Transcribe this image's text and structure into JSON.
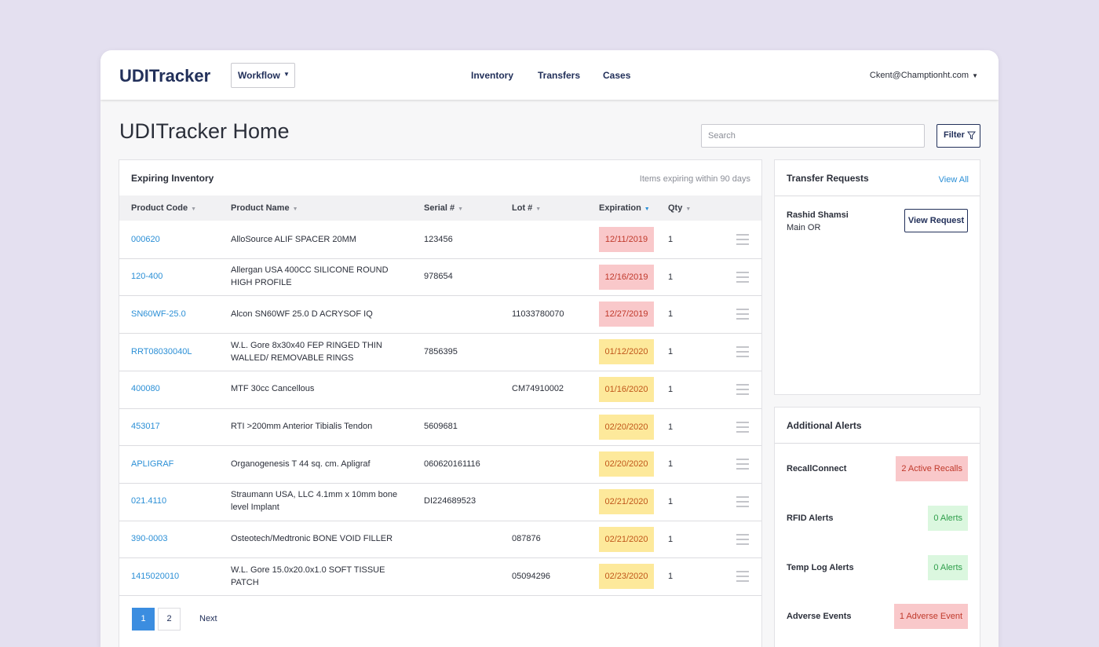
{
  "nav": {
    "brand": "UDITracker",
    "workflow": "Workflow",
    "links": [
      "Inventory",
      "Transfers",
      "Cases"
    ],
    "user": "Ckent@Champtionht.com"
  },
  "page": {
    "title": "UDITracker Home",
    "search_placeholder": "Search",
    "filter": "Filter"
  },
  "styles": {
    "red": {
      "bg": "#f9c8ca",
      "fg": "#c0392b"
    },
    "yellow": {
      "bg": "#fde99b",
      "fg": "#c0561a"
    },
    "green": {
      "bg": "#dbf7df",
      "fg": "#2e9e4a"
    }
  },
  "inventory": {
    "title": "Expiring Inventory",
    "note": "Items expiring within 90 days",
    "columns": [
      "Product Code",
      "Product Name",
      "Serial #",
      "Lot #",
      "Expiration",
      "Qty"
    ],
    "sorted_column": 4,
    "rows": [
      {
        "code": "000620",
        "name": "AlloSource ALIF SPACER 20MM",
        "serial": "123456",
        "lot": null,
        "expiration": "12/11/2019",
        "qty": "1",
        "level": "red"
      },
      {
        "code": "120-400",
        "name": "Allergan USA 400CC SILICONE ROUND HIGH PROFILE",
        "serial": "978654",
        "lot": null,
        "expiration": "12/16/2019",
        "qty": "1",
        "level": "red"
      },
      {
        "code": "SN60WF-25.0",
        "name": "Alcon SN60WF 25.0 D ACRYSOF IQ",
        "serial": null,
        "lot": "11033780070",
        "expiration": "12/27/2019",
        "qty": "1",
        "level": "red"
      },
      {
        "code": "RRT08030040L",
        "name": "W.L. Gore 8x30x40 FEP RINGED THIN WALLED/ REMOVABLE RINGS",
        "serial": "7856395",
        "lot": null,
        "expiration": "01/12/2020",
        "qty": "1",
        "level": "yellow"
      },
      {
        "code": "400080",
        "name": "MTF 30cc Cancellous",
        "serial": null,
        "lot": "CM74910002",
        "expiration": "01/16/2020",
        "qty": "1",
        "level": "yellow"
      },
      {
        "code": "453017",
        "name": "RTI >200mm Anterior Tibialis Tendon",
        "serial": "5609681",
        "lot": null,
        "expiration": "02/20/2020",
        "qty": "1",
        "level": "yellow"
      },
      {
        "code": "APLIGRAF",
        "name": "Organogenesis T 44 sq. cm. Apligraf",
        "serial": "060620161116",
        "lot": null,
        "expiration": "02/20/2020",
        "qty": "1",
        "level": "yellow"
      },
      {
        "code": "021.4110",
        "name": "Straumann USA, LLC 4.1mm x 10mm bone level Implant",
        "serial": "DI224689523",
        "lot": null,
        "expiration": "02/21/2020",
        "qty": "1",
        "level": "yellow"
      },
      {
        "code": "390-0003",
        "name": "Osteotech/Medtronic BONE VOID FILLER",
        "serial": null,
        "lot": "087876",
        "expiration": "02/21/2020",
        "qty": "1",
        "level": "yellow"
      },
      {
        "code": "1415020010",
        "name": "W.L. Gore 15.0x20.0x1.0 SOFT TISSUE PATCH",
        "serial": null,
        "lot": "05094296",
        "expiration": "02/23/2020",
        "qty": "1",
        "level": "yellow"
      }
    ],
    "pages": [
      "1",
      "2"
    ],
    "next": "Next"
  },
  "transfers": {
    "title": "Transfer Requests",
    "view_all": "View All",
    "items": [
      {
        "name": "Rashid Shamsi",
        "location": "Main OR",
        "action": "View Request"
      }
    ]
  },
  "alerts": {
    "title": "Additional Alerts",
    "items": [
      {
        "label": "RecallConnect",
        "badge": "2 Active Recalls",
        "level": "red"
      },
      {
        "label": "RFID Alerts",
        "badge": "0 Alerts",
        "level": "green"
      },
      {
        "label": "Temp Log Alerts",
        "badge": "0 Alerts",
        "level": "green"
      },
      {
        "label": "Adverse Events",
        "badge": "1 Adverse Event",
        "level": "red"
      }
    ]
  }
}
